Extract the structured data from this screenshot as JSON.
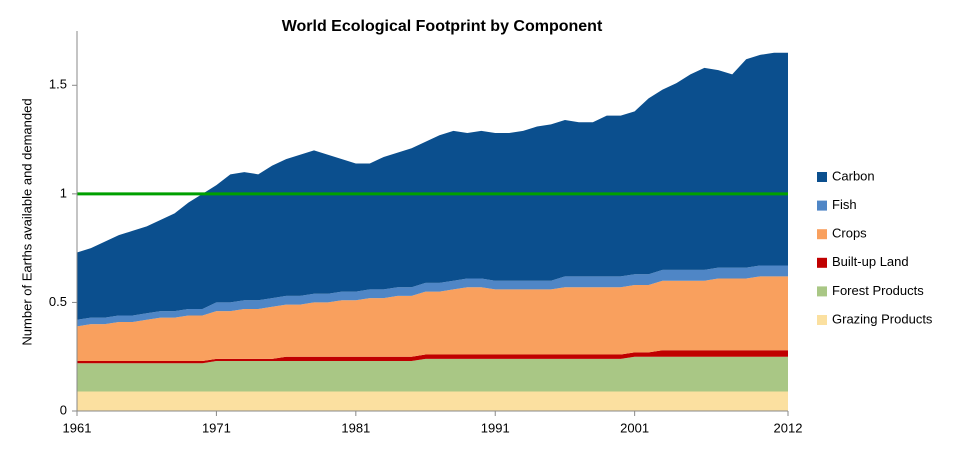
{
  "chart_data": {
    "type": "stacked_area",
    "title": "World Ecological Footprint by Component",
    "y_label": "Number of Earths available and demanded",
    "x": [
      1961,
      1962,
      1963,
      1964,
      1965,
      1966,
      1967,
      1968,
      1969,
      1970,
      1971,
      1972,
      1973,
      1974,
      1975,
      1976,
      1977,
      1978,
      1979,
      1980,
      1981,
      1982,
      1983,
      1984,
      1985,
      1986,
      1987,
      1988,
      1989,
      1990,
      1991,
      1992,
      1993,
      1994,
      1995,
      1996,
      1997,
      1998,
      1999,
      2000,
      2001,
      2002,
      2003,
      2004,
      2005,
      2006,
      2007,
      2008,
      2009,
      2010,
      2011,
      2012
    ],
    "series": [
      {
        "name": "Grazing Products",
        "color": "#fbe0a0",
        "values": [
          0.09,
          0.09,
          0.09,
          0.09,
          0.09,
          0.09,
          0.09,
          0.09,
          0.09,
          0.09,
          0.09,
          0.09,
          0.09,
          0.09,
          0.09,
          0.09,
          0.09,
          0.09,
          0.09,
          0.09,
          0.09,
          0.09,
          0.09,
          0.09,
          0.09,
          0.09,
          0.09,
          0.09,
          0.09,
          0.09,
          0.09,
          0.09,
          0.09,
          0.09,
          0.09,
          0.09,
          0.09,
          0.09,
          0.09,
          0.09,
          0.09,
          0.09,
          0.09,
          0.09,
          0.09,
          0.09,
          0.09,
          0.09,
          0.09,
          0.09,
          0.09,
          0.09
        ]
      },
      {
        "name": "Forest Products",
        "color": "#a9c785",
        "values": [
          0.13,
          0.13,
          0.13,
          0.13,
          0.13,
          0.13,
          0.13,
          0.13,
          0.13,
          0.13,
          0.14,
          0.14,
          0.14,
          0.14,
          0.14,
          0.14,
          0.14,
          0.14,
          0.14,
          0.14,
          0.14,
          0.14,
          0.14,
          0.14,
          0.14,
          0.15,
          0.15,
          0.15,
          0.15,
          0.15,
          0.15,
          0.15,
          0.15,
          0.15,
          0.15,
          0.15,
          0.15,
          0.15,
          0.15,
          0.15,
          0.16,
          0.16,
          0.16,
          0.16,
          0.16,
          0.16,
          0.16,
          0.16,
          0.16,
          0.16,
          0.16,
          0.16
        ]
      },
      {
        "name": "Built-up Land",
        "color": "#c00000",
        "values": [
          0.01,
          0.01,
          0.01,
          0.01,
          0.01,
          0.01,
          0.01,
          0.01,
          0.01,
          0.01,
          0.01,
          0.01,
          0.01,
          0.01,
          0.01,
          0.02,
          0.02,
          0.02,
          0.02,
          0.02,
          0.02,
          0.02,
          0.02,
          0.02,
          0.02,
          0.02,
          0.02,
          0.02,
          0.02,
          0.02,
          0.02,
          0.02,
          0.02,
          0.02,
          0.02,
          0.02,
          0.02,
          0.02,
          0.02,
          0.02,
          0.02,
          0.02,
          0.03,
          0.03,
          0.03,
          0.03,
          0.03,
          0.03,
          0.03,
          0.03,
          0.03,
          0.03
        ]
      },
      {
        "name": "Crops",
        "color": "#f9a05e",
        "values": [
          0.16,
          0.17,
          0.17,
          0.18,
          0.18,
          0.19,
          0.2,
          0.2,
          0.21,
          0.21,
          0.22,
          0.22,
          0.23,
          0.23,
          0.24,
          0.24,
          0.24,
          0.25,
          0.25,
          0.26,
          0.26,
          0.27,
          0.27,
          0.28,
          0.28,
          0.29,
          0.29,
          0.3,
          0.31,
          0.31,
          0.3,
          0.3,
          0.3,
          0.3,
          0.3,
          0.31,
          0.31,
          0.31,
          0.31,
          0.31,
          0.31,
          0.31,
          0.32,
          0.32,
          0.32,
          0.32,
          0.33,
          0.33,
          0.33,
          0.34,
          0.34,
          0.34
        ]
      },
      {
        "name": "Fish",
        "color": "#4f86c6",
        "values": [
          0.03,
          0.03,
          0.03,
          0.03,
          0.03,
          0.03,
          0.03,
          0.03,
          0.03,
          0.03,
          0.04,
          0.04,
          0.04,
          0.04,
          0.04,
          0.04,
          0.04,
          0.04,
          0.04,
          0.04,
          0.04,
          0.04,
          0.04,
          0.04,
          0.04,
          0.04,
          0.04,
          0.04,
          0.04,
          0.04,
          0.04,
          0.04,
          0.04,
          0.04,
          0.04,
          0.05,
          0.05,
          0.05,
          0.05,
          0.05,
          0.05,
          0.05,
          0.05,
          0.05,
          0.05,
          0.05,
          0.05,
          0.05,
          0.05,
          0.05,
          0.05,
          0.05
        ]
      },
      {
        "name": "Carbon",
        "color": "#0b4f8e",
        "values": [
          0.31,
          0.32,
          0.35,
          0.37,
          0.39,
          0.4,
          0.42,
          0.45,
          0.49,
          0.53,
          0.54,
          0.59,
          0.59,
          0.58,
          0.61,
          0.63,
          0.65,
          0.66,
          0.64,
          0.61,
          0.59,
          0.58,
          0.61,
          0.62,
          0.64,
          0.65,
          0.68,
          0.69,
          0.67,
          0.68,
          0.68,
          0.68,
          0.69,
          0.71,
          0.72,
          0.72,
          0.71,
          0.71,
          0.74,
          0.74,
          0.75,
          0.81,
          0.83,
          0.86,
          0.9,
          0.93,
          0.91,
          0.89,
          0.96,
          0.97,
          0.98,
          0.98
        ]
      }
    ],
    "reference_line": {
      "value": 1,
      "color": "#00a000"
    },
    "xlim": [
      1961,
      2012
    ],
    "xticks": [
      1961,
      1971,
      1981,
      1991,
      2001,
      2012
    ],
    "ylim": [
      0,
      1.75
    ],
    "yticks": [
      0,
      0.5,
      1,
      1.5
    ],
    "grid": false,
    "legend": "right"
  }
}
